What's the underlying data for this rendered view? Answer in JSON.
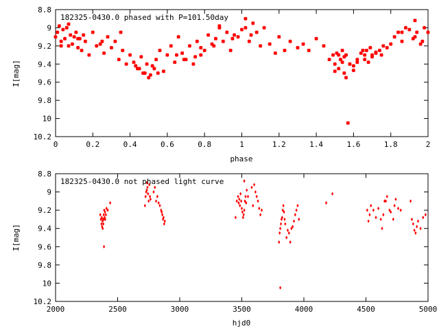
{
  "chart_data": [
    {
      "type": "scatter",
      "title": "182325-0430.0 phased with P=101.50day",
      "xlabel": "phase",
      "ylabel": "I[mag]",
      "xlim": [
        0,
        2
      ],
      "ylim": [
        10.2,
        8.8
      ],
      "y_inverted": true,
      "xticks": [
        "0",
        "0.2",
        "0.4",
        "0.6",
        "0.8",
        "1",
        "1.2",
        "1.4",
        "1.6",
        "1.8",
        "2"
      ],
      "yticks": [
        "8.8",
        "9",
        "9.2",
        "9.4",
        "9.6",
        "9.8",
        "10",
        "10.2"
      ],
      "marker": "filled-cross",
      "color": "#ff0000",
      "x": [
        0.0,
        0.01,
        0.02,
        0.03,
        0.04,
        0.05,
        0.06,
        0.07,
        0.08,
        0.09,
        0.1,
        0.11,
        0.12,
        0.13,
        0.14,
        0.15,
        0.16,
        0.18,
        0.2,
        0.22,
        0.24,
        0.26,
        0.28,
        0.3,
        0.32,
        0.34,
        0.36,
        0.38,
        0.4,
        0.42,
        0.44,
        0.46,
        0.48,
        0.5,
        0.52,
        0.54,
        0.56,
        0.58,
        0.6,
        0.62,
        0.64,
        0.66,
        0.68,
        0.7,
        0.72,
        0.74,
        0.76,
        0.78,
        0.8,
        0.82,
        0.84,
        0.86,
        0.88,
        0.9,
        0.92,
        0.94,
        0.96,
        0.98,
        1.0,
        1.02,
        1.04,
        1.06,
        1.08,
        1.1,
        1.12,
        1.15,
        1.18,
        1.2,
        1.23,
        1.26,
        1.3,
        1.33,
        1.36,
        1.4,
        1.44,
        1.47,
        1.49,
        1.5,
        1.51,
        1.52,
        1.53,
        1.54,
        1.55,
        1.56,
        1.57,
        1.58,
        1.6,
        1.62,
        1.64,
        1.66,
        1.67,
        1.68,
        1.69,
        1.7,
        1.72,
        1.74,
        1.76,
        1.78,
        1.8,
        1.82,
        1.84,
        1.86,
        1.88,
        1.9,
        1.92,
        1.93,
        1.94,
        1.96,
        1.98,
        2.0,
        0.03,
        0.07,
        0.12,
        0.45,
        0.47,
        0.49,
        0.51,
        0.53,
        0.43,
        0.55,
        0.69,
        0.75,
        0.85,
        0.95,
        1.02,
        1.05,
        1.5,
        1.52,
        1.54,
        1.56,
        1.58,
        1.6,
        1.66,
        1.7,
        1.72,
        1.86,
        1.93,
        1.97,
        0.25,
        0.35,
        0.65,
        0.78,
        0.88,
        1.55,
        1.62,
        1.65,
        1.75
      ],
      "y": [
        9.1,
        9.05,
        8.98,
        9.15,
        9.02,
        9.12,
        9.0,
        9.2,
        9.08,
        9.18,
        9.1,
        9.05,
        9.22,
        9.12,
        9.25,
        9.08,
        9.15,
        9.3,
        9.05,
        9.2,
        9.18,
        9.28,
        9.1,
        9.22,
        9.15,
        9.35,
        9.25,
        9.4,
        9.3,
        9.38,
        9.45,
        9.32,
        9.5,
        9.55,
        9.42,
        9.35,
        9.25,
        9.48,
        9.3,
        9.2,
        9.38,
        9.1,
        9.28,
        9.35,
        9.2,
        9.4,
        9.15,
        9.3,
        9.25,
        9.08,
        9.18,
        9.12,
        9.0,
        9.15,
        9.05,
        9.25,
        9.08,
        9.1,
        9.02,
        8.9,
        9.15,
        8.95,
        9.05,
        9.2,
        9.0,
        9.18,
        9.28,
        9.1,
        9.25,
        9.15,
        9.22,
        9.18,
        9.25,
        9.12,
        9.2,
        9.35,
        9.3,
        9.4,
        9.28,
        9.45,
        9.35,
        9.25,
        9.5,
        9.3,
        10.05,
        9.4,
        9.42,
        9.35,
        9.28,
        9.3,
        9.25,
        9.38,
        9.22,
        9.3,
        9.28,
        9.25,
        9.2,
        9.22,
        9.18,
        9.1,
        9.05,
        9.15,
        9.0,
        9.02,
        9.12,
        8.92,
        9.05,
        9.18,
        9.0,
        9.05,
        9.2,
        8.96,
        9.12,
        9.45,
        9.5,
        9.4,
        9.52,
        9.45,
        9.42,
        9.5,
        9.35,
        9.32,
        9.2,
        9.12,
        9.0,
        9.08,
        9.48,
        9.3,
        9.38,
        9.55,
        9.4,
        9.47,
        9.35,
        9.32,
        9.27,
        9.05,
        9.1,
        9.15,
        9.15,
        9.05,
        9.3,
        9.22,
        8.98,
        9.32,
        9.38,
        9.25,
        9.3
      ]
    },
    {
      "type": "scatter",
      "title": "182325-0430.0 not phased light curve",
      "xlabel": "hjd0",
      "ylabel": "I[mag]",
      "xlim": [
        2000,
        5000
      ],
      "ylim": [
        10.2,
        8.8
      ],
      "y_inverted": true,
      "xticks": [
        "2000",
        "2500",
        "3000",
        "3500",
        "4000",
        "4500",
        "5000"
      ],
      "yticks": [
        "8.8",
        "9",
        "9.2",
        "9.4",
        "9.6",
        "9.8",
        "10",
        "10.2"
      ],
      "marker": "diamond",
      "color": "#ff0000",
      "x": [
        2360,
        2365,
        2370,
        2372,
        2375,
        2378,
        2380,
        2382,
        2385,
        2388,
        2390,
        2392,
        2395,
        2398,
        2400,
        2405,
        2410,
        2420,
        2440,
        2720,
        2725,
        2730,
        2735,
        2740,
        2745,
        2750,
        2755,
        2760,
        2765,
        2790,
        2800,
        2810,
        2820,
        2830,
        2840,
        2850,
        2855,
        2860,
        2865,
        2870,
        2875,
        2880,
        3450,
        3460,
        3470,
        3475,
        3480,
        3485,
        3490,
        3495,
        3500,
        3505,
        3510,
        3515,
        3520,
        3525,
        3530,
        3535,
        3540,
        3550,
        3580,
        3590,
        3600,
        3610,
        3620,
        3630,
        3640,
        3650,
        3660,
        3800,
        3805,
        3810,
        3815,
        3820,
        3825,
        3830,
        3835,
        3840,
        3845,
        3850,
        3860,
        3870,
        3880,
        3890,
        3900,
        3910,
        3920,
        3930,
        3940,
        3950,
        3960,
        4180,
        4230,
        4510,
        4520,
        4530,
        4540,
        4560,
        4580,
        4600,
        4620,
        4630,
        4640,
        4660,
        4670,
        4690,
        4700,
        4720,
        4730,
        4740,
        4760,
        4780,
        4860,
        4870,
        4880,
        4890,
        4900,
        4910,
        4920,
        4940,
        4960,
        4980,
        2390,
        3810,
        2736,
        3520,
        4650
      ],
      "y": [
        9.25,
        9.3,
        9.35,
        9.28,
        9.38,
        9.32,
        9.4,
        9.3,
        9.35,
        9.25,
        9.3,
        9.2,
        9.28,
        9.22,
        9.3,
        9.25,
        9.18,
        9.2,
        9.12,
        9.15,
        9.05,
        9.0,
        8.98,
        8.95,
        9.02,
        9.1,
        8.92,
        9.05,
        9.08,
        9.0,
        8.95,
        9.1,
        9.05,
        9.12,
        9.15,
        9.2,
        9.22,
        9.25,
        9.3,
        9.28,
        9.35,
        9.32,
        9.28,
        9.1,
        9.05,
        9.12,
        9.08,
        9.15,
        9.02,
        9.1,
        9.18,
        9.22,
        9.28,
        9.25,
        9.2,
        9.1,
        9.05,
        9.12,
        8.98,
        9.05,
        8.95,
        9.15,
        8.92,
        9.0,
        9.05,
        9.1,
        9.18,
        9.25,
        9.2,
        9.55,
        9.45,
        9.4,
        9.35,
        9.3,
        9.28,
        9.2,
        9.15,
        9.22,
        9.3,
        9.35,
        9.5,
        9.42,
        9.45,
        9.55,
        9.4,
        9.38,
        9.32,
        9.25,
        9.2,
        9.15,
        9.3,
        9.12,
        9.02,
        9.2,
        9.32,
        9.25,
        9.15,
        9.2,
        9.28,
        9.18,
        9.3,
        9.4,
        9.25,
        9.1,
        9.05,
        9.2,
        9.22,
        9.3,
        9.15,
        9.08,
        9.18,
        9.2,
        9.1,
        9.3,
        9.35,
        9.42,
        9.45,
        9.38,
        9.32,
        9.4,
        9.28,
        9.25,
        9.6,
        10.05,
        8.9,
        8.88,
        9.1
      ]
    }
  ]
}
